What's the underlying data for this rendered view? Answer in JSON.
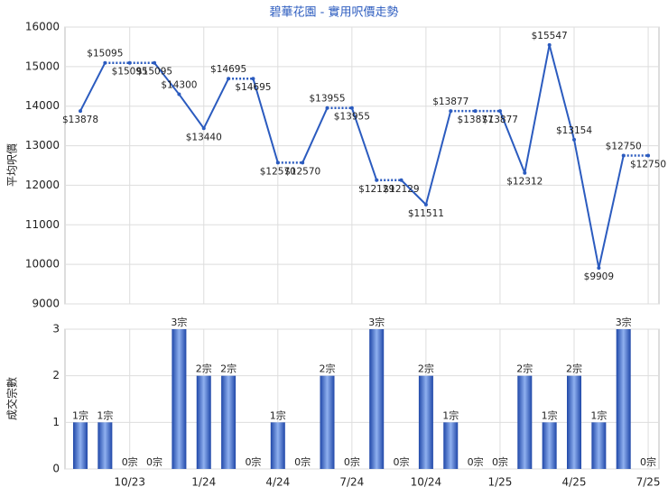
{
  "chart_data": [
    {
      "type": "line",
      "title": "碧華花園 - 實用呎價走勢",
      "ylabel": "平均呎價",
      "color": "#2b5bbf",
      "values": [
        13878,
        15095,
        15095,
        15095,
        14300,
        13440,
        14695,
        14695,
        12570,
        12570,
        13955,
        13955,
        12129,
        12129,
        11511,
        13877,
        13877,
        13877,
        12312,
        15547,
        13154,
        9909,
        12750,
        12750
      ],
      "value_labels": [
        "$13878",
        "$15095",
        "$15095",
        "$15095",
        "$14300",
        "$13440",
        "$14695",
        "$14695",
        "$12570",
        "$12570",
        "$13955",
        "$13955",
        "$12129",
        "$12129",
        "$11511",
        "$13877",
        "$13877",
        "$13877",
        "$12312",
        "$15547",
        "$13154",
        "$9909",
        "$12750",
        "$12750"
      ],
      "ylim": [
        9000,
        16000
      ],
      "yticks": [
        9000,
        10000,
        11000,
        12000,
        13000,
        14000,
        15000,
        16000
      ],
      "grid": true
    },
    {
      "type": "bar",
      "ylabel": "成交宗數",
      "color": "#2f5fc4",
      "categories": [
        null,
        null,
        "10/23",
        null,
        null,
        "1/24",
        null,
        null,
        "4/24",
        null,
        null,
        "7/24",
        null,
        null,
        "10/24",
        null,
        null,
        "1/25",
        null,
        null,
        "4/25",
        null,
        null,
        "7/25"
      ],
      "values": [
        1,
        1,
        0,
        0,
        3,
        2,
        2,
        0,
        1,
        0,
        2,
        0,
        3,
        0,
        2,
        1,
        0,
        0,
        2,
        1,
        2,
        1,
        3,
        0
      ],
      "value_labels": [
        "1宗",
        "1宗",
        "0宗",
        "0宗",
        "3宗",
        "2宗",
        "2宗",
        "0宗",
        "1宗",
        "0宗",
        "2宗",
        "0宗",
        "3宗",
        "0宗",
        "2宗",
        "1宗",
        "0宗",
        "0宗",
        "2宗",
        "1宗",
        "2宗",
        "1宗",
        "3宗",
        "0宗"
      ],
      "ylim": [
        0,
        3
      ],
      "yticks": [
        0,
        1,
        2,
        3
      ],
      "grid": true
    }
  ]
}
